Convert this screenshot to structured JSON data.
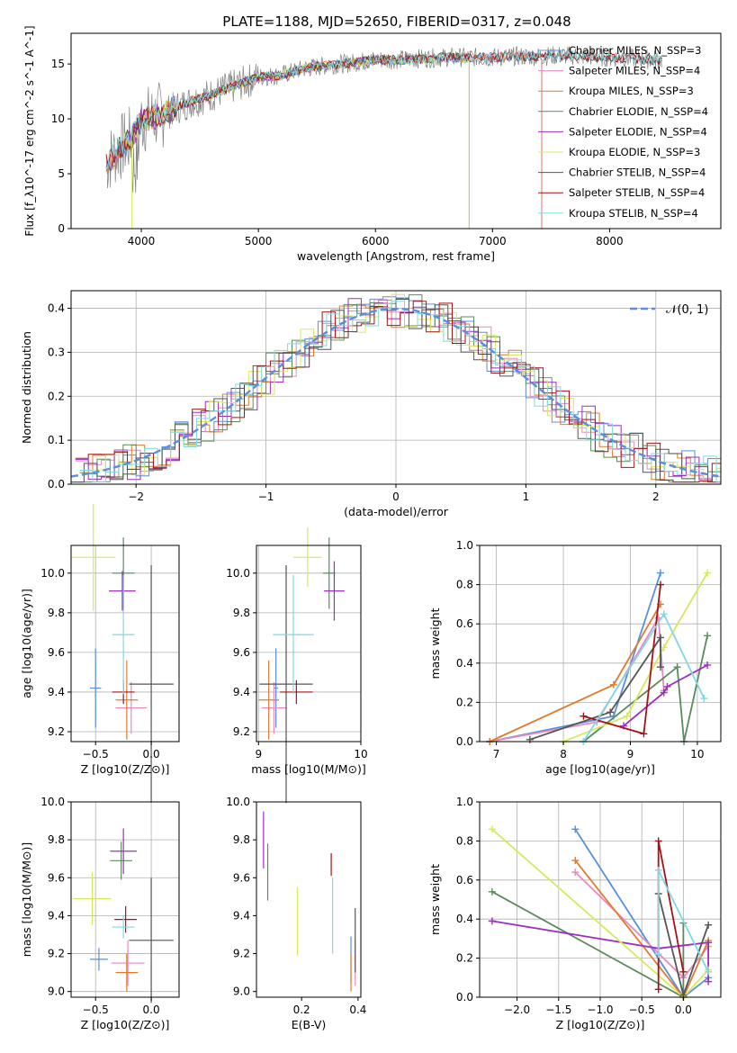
{
  "figure_title": "PLATE=1188, MJD=52650, FIBERID=0317, z=0.048",
  "colors": {
    "chabrier_miles": "#5a8fe0",
    "salpeter_miles": "#e88ac2",
    "kroupa_miles": "#e07b2e",
    "chabrier_elodie": "#5b8a5e",
    "salpeter_elodie": "#9b2fbf",
    "kroupa_elodie": "#d5ea5b",
    "chabrier_stelib": "#555555",
    "salpeter_stelib": "#a31515",
    "kroupa_stelib": "#7fd9e0",
    "data": "#808080",
    "normal": "#5a8fe0"
  },
  "chart_data": [
    {
      "id": "spectrum",
      "type": "line",
      "title": "PLATE=1188, MJD=52650, FIBERID=0317, z=0.048",
      "xlabel": "wavelength [Angstrom, rest frame]",
      "ylabel": "Flux [f_λ10^-17 erg cm^-2 s^-1 A^-1]",
      "xlim": [
        3400,
        8950
      ],
      "ylim": [
        0,
        17.8
      ],
      "xticks": [
        4000,
        5000,
        6000,
        7000,
        8000
      ],
      "yticks": [
        0,
        5,
        10,
        15
      ],
      "legend_position": "right",
      "legend": [
        "Chabrier MILES, N_SSP=3",
        "Salpeter MILES, N_SSP=4",
        "Kroupa MILES, N_SSP=3",
        "Chabrier ELODIE, N_SSP=4",
        "Salpeter ELODIE, N_SSP=4",
        "Kroupa ELODIE, N_SSP=3",
        "Chabrier STELIB, N_SSP=4",
        "Salpeter STELIB, N_SSP=4",
        "Kroupa STELIB, N_SSP=4"
      ],
      "data_trend": {
        "wavelength": [
          3700,
          3800,
          3900,
          4000,
          4200,
          4400,
          4600,
          4800,
          5000,
          5200,
          5400,
          5600,
          5800,
          6000,
          6200,
          6400,
          6600,
          6800,
          7000,
          7200,
          7400,
          7600,
          7800,
          8000,
          8200,
          8400
        ],
        "flux": [
          6.0,
          7.2,
          8.0,
          9.8,
          10.5,
          11.5,
          12.2,
          13.0,
          13.8,
          14.0,
          14.6,
          14.9,
          15.1,
          15.4,
          15.4,
          15.5,
          15.6,
          15.6,
          15.6,
          15.7,
          15.7,
          15.8,
          15.7,
          15.6,
          15.5,
          15.4
        ]
      }
    },
    {
      "id": "residuals",
      "type": "line",
      "xlabel": "(data-model)/error",
      "ylabel": "Normed distribution",
      "xlim": [
        -2.5,
        2.5
      ],
      "ylim": [
        0,
        0.44
      ],
      "xticks": [
        -2,
        -1,
        0,
        1,
        2
      ],
      "yticks": [
        0.0,
        0.1,
        0.2,
        0.3,
        0.4
      ],
      "legend_position": "top-right",
      "legend": [
        "𝒩(0, 1)"
      ],
      "grid": true
    },
    {
      "id": "age_vs_Z",
      "type": "scatter",
      "xlabel": "Z [log10(Z/Z⊙)]",
      "ylabel": "age [log10(age/yr)]",
      "xlim": [
        -0.72,
        0.25
      ],
      "ylim": [
        9.15,
        10.14
      ],
      "xticks": [
        -0.5,
        0.0
      ],
      "yticks": [
        9.2,
        9.4,
        9.6,
        9.8,
        10.0
      ],
      "grid": true,
      "points": [
        {
          "model": "chabrier_miles",
          "x": -0.5,
          "xerr": 0.05,
          "y": 9.42,
          "yerr": 0.2
        },
        {
          "model": "salpeter_miles",
          "x": -0.18,
          "xerr": 0.14,
          "y": 9.32,
          "yerr": 0.13
        },
        {
          "model": "kroupa_miles",
          "x": -0.22,
          "xerr": 0.1,
          "y": 9.36,
          "yerr": 0.2
        },
        {
          "model": "chabrier_elodie",
          "x": -0.25,
          "xerr": 0.1,
          "y": 10.0,
          "yerr": 0.18
        },
        {
          "model": "salpeter_elodie",
          "x": -0.26,
          "xerr": 0.12,
          "y": 9.91,
          "yerr": 0.1
        },
        {
          "model": "kroupa_elodie",
          "x": -0.52,
          "xerr": 0.2,
          "y": 10.08,
          "yerr": 0.27
        },
        {
          "model": "chabrier_stelib",
          "x": 0.0,
          "xerr": 0.2,
          "y": 9.44,
          "yerr": 0.6
        },
        {
          "model": "salpeter_stelib",
          "x": -0.25,
          "xerr": 0.1,
          "y": 9.4,
          "yerr": 0.06
        },
        {
          "model": "kroupa_stelib",
          "x": -0.25,
          "xerr": 0.1,
          "y": 9.69,
          "yerr": 0.3
        }
      ]
    },
    {
      "id": "age_vs_mass",
      "type": "scatter",
      "xlabel": "mass [log10(M/M⊙)]",
      "ylabel": "",
      "xlim": [
        8.98,
        10.0
      ],
      "ylim": [
        9.15,
        10.14
      ],
      "xticks": [
        9,
        10
      ],
      "yticks": [
        9.2,
        9.4,
        9.6,
        9.8,
        10.0
      ],
      "grid": true,
      "points": [
        {
          "model": "chabrier_miles",
          "x": 9.17,
          "xerr": 0.02,
          "y": 9.42,
          "yerr": 0.2
        },
        {
          "model": "salpeter_miles",
          "x": 9.15,
          "xerr": 0.12,
          "y": 9.32,
          "yerr": 0.13
        },
        {
          "model": "kroupa_miles",
          "x": 9.1,
          "xerr": 0.1,
          "y": 9.36,
          "yerr": 0.2
        },
        {
          "model": "chabrier_elodie",
          "x": 9.69,
          "xerr": 0.06,
          "y": 10.0,
          "yerr": 0.18
        },
        {
          "model": "salpeter_elodie",
          "x": 9.74,
          "xerr": 0.1,
          "y": 9.91,
          "yerr": 0.15
        },
        {
          "model": "kroupa_elodie",
          "x": 9.48,
          "xerr": 0.14,
          "y": 10.08,
          "yerr": 0.15
        },
        {
          "model": "chabrier_stelib",
          "x": 9.27,
          "xerr": 0.26,
          "y": 9.44,
          "yerr": 0.6
        },
        {
          "model": "salpeter_stelib",
          "x": 9.37,
          "xerr": 0.16,
          "y": 9.4,
          "yerr": 0.06
        },
        {
          "model": "kroupa_stelib",
          "x": 9.34,
          "xerr": 0.2,
          "y": 9.69,
          "yerr": 0.3
        }
      ]
    },
    {
      "id": "weight_vs_age",
      "type": "line",
      "xlabel": "age [log10(age/yr)]",
      "ylabel": "mass weight",
      "xlim": [
        6.75,
        10.35
      ],
      "ylim": [
        0,
        1.0
      ],
      "xticks": [
        7,
        8,
        9,
        10
      ],
      "yticks": [
        0.0,
        0.2,
        0.4,
        0.6,
        0.8,
        1.0
      ],
      "grid": true,
      "series": [
        {
          "model": "chabrier_miles",
          "x": [
            6.9,
            8.75,
            9.45
          ],
          "y": [
            0.0,
            0.13,
            0.86
          ]
        },
        {
          "model": "salpeter_miles",
          "x": [
            6.9,
            8.5,
            9.42,
            9.5
          ],
          "y": [
            0.0,
            0.1,
            0.63,
            0.26
          ]
        },
        {
          "model": "kroupa_miles",
          "x": [
            6.9,
            8.75,
            9.45
          ],
          "y": [
            0.0,
            0.29,
            0.7
          ]
        },
        {
          "model": "chabrier_elodie",
          "x": [
            8.3,
            9.7,
            9.8,
            10.15
          ],
          "y": [
            0.0,
            0.38,
            0.0,
            0.54
          ]
        },
        {
          "model": "salpeter_elodie",
          "x": [
            8.9,
            9.5,
            9.55,
            10.15
          ],
          "y": [
            0.08,
            0.25,
            0.28,
            0.39
          ]
        },
        {
          "model": "kroupa_elodie",
          "x": [
            8.0,
            8.95,
            9.5,
            10.15
          ],
          "y": [
            0.0,
            0.13,
            0.48,
            0.86
          ]
        },
        {
          "model": "chabrier_stelib",
          "x": [
            7.5,
            8.7,
            9.45,
            9.45
          ],
          "y": [
            0.01,
            0.15,
            0.53,
            0.38
          ]
        },
        {
          "model": "salpeter_stelib",
          "x": [
            8.3,
            9.2,
            9.45
          ],
          "y": [
            0.13,
            0.04,
            0.8
          ]
        },
        {
          "model": "kroupa_stelib",
          "x": [
            8.3,
            9.5,
            10.1
          ],
          "y": [
            0.0,
            0.65,
            0.22
          ]
        }
      ]
    },
    {
      "id": "mass_vs_Z",
      "type": "scatter",
      "xlabel": "Z [log10(Z/Z⊙)]",
      "ylabel": "mass [log10(M/M⊙)]",
      "xlim": [
        -0.72,
        0.25
      ],
      "ylim": [
        8.97,
        10.0
      ],
      "xticks": [
        -0.5,
        0.0
      ],
      "yticks": [
        9.0,
        9.2,
        9.4,
        9.6,
        9.8,
        10.0
      ],
      "grid": true,
      "points": [
        {
          "model": "chabrier_miles",
          "x": -0.47,
          "xerr": 0.08,
          "y": 9.17,
          "yerr": 0.06
        },
        {
          "model": "salpeter_miles",
          "x": -0.21,
          "xerr": 0.15,
          "y": 9.15,
          "yerr": 0.12
        },
        {
          "model": "kroupa_miles",
          "x": -0.22,
          "xerr": 0.1,
          "y": 9.1,
          "yerr": 0.1
        },
        {
          "model": "chabrier_elodie",
          "x": -0.27,
          "xerr": 0.1,
          "y": 9.69,
          "yerr": 0.1
        },
        {
          "model": "salpeter_elodie",
          "x": -0.25,
          "xerr": 0.12,
          "y": 9.74,
          "yerr": 0.12
        },
        {
          "model": "kroupa_elodie",
          "x": -0.53,
          "xerr": 0.17,
          "y": 9.49,
          "yerr": 0.14
        },
        {
          "model": "chabrier_stelib",
          "x": 0.0,
          "xerr": 0.2,
          "y": 9.27,
          "yerr": 0.33
        },
        {
          "model": "salpeter_stelib",
          "x": -0.23,
          "xerr": 0.1,
          "y": 9.38,
          "yerr": 0.07
        },
        {
          "model": "kroupa_stelib",
          "x": -0.25,
          "xerr": 0.1,
          "y": 9.34,
          "yerr": 0.06
        }
      ]
    },
    {
      "id": "mass_vs_ebv",
      "type": "scatter",
      "xlabel": "E(B-V)",
      "ylabel": "",
      "xlim": [
        0.04,
        0.41
      ],
      "ylim": [
        8.97,
        10.0
      ],
      "xticks": [
        0.2,
        0.4
      ],
      "yticks": [
        9.0,
        9.2,
        9.4,
        9.6,
        9.8,
        10.0
      ],
      "grid": false,
      "points": [
        {
          "model": "chabrier_miles",
          "x": 0.375,
          "xerr": 0.0,
          "y": 9.17,
          "yerr": 0.12
        },
        {
          "model": "salpeter_miles",
          "x": 0.39,
          "xerr": 0.0,
          "y": 9.15,
          "yerr": 0.12
        },
        {
          "model": "kroupa_miles",
          "x": 0.375,
          "xerr": 0.0,
          "y": 9.1,
          "yerr": 0.1
        },
        {
          "model": "chabrier_elodie",
          "x": 0.08,
          "xerr": 0.0,
          "y": 9.63,
          "yerr": 0.15
        },
        {
          "model": "salpeter_elodie",
          "x": 0.065,
          "xerr": 0.0,
          "y": 9.8,
          "yerr": 0.15
        },
        {
          "model": "kroupa_elodie",
          "x": 0.185,
          "xerr": 0.0,
          "y": 9.37,
          "yerr": 0.18
        },
        {
          "model": "chabrier_stelib",
          "x": 0.39,
          "xerr": 0.0,
          "y": 9.27,
          "yerr": 0.17
        },
        {
          "model": "salpeter_stelib",
          "x": 0.305,
          "xerr": 0.0,
          "y": 9.67,
          "yerr": 0.06
        },
        {
          "model": "kroupa_stelib",
          "x": 0.31,
          "xerr": 0.0,
          "y": 9.4,
          "yerr": 0.2
        }
      ]
    },
    {
      "id": "weight_vs_Z",
      "type": "line",
      "xlabel": "Z [log10(Z/Z⊙)]",
      "ylabel": "mass weight",
      "xlim": [
        -2.45,
        0.45
      ],
      "ylim": [
        0,
        1.0
      ],
      "xticks": [
        -2.0,
        -1.5,
        -1.0,
        -0.5,
        0.0
      ],
      "yticks": [
        0.0,
        0.2,
        0.4,
        0.6,
        0.8,
        1.0
      ],
      "grid": true,
      "series": [
        {
          "model": "chabrier_miles",
          "x": [
            -1.3,
            0.0,
            0.3
          ],
          "y": [
            0.86,
            0.0,
            0.1
          ]
        },
        {
          "model": "salpeter_miles",
          "x": [
            -1.3,
            0.0,
            0.3
          ],
          "y": [
            0.64,
            0.1,
            0.26
          ]
        },
        {
          "model": "kroupa_miles",
          "x": [
            -1.3,
            0.0,
            0.3
          ],
          "y": [
            0.7,
            0.0,
            0.29
          ]
        },
        {
          "model": "chabrier_elodie",
          "x": [
            -2.3,
            0.0,
            0.0
          ],
          "y": [
            0.54,
            0.0,
            0.38
          ]
        },
        {
          "model": "salpeter_elodie",
          "x": [
            -2.3,
            -0.3,
            0.3,
            0.3
          ],
          "y": [
            0.39,
            0.25,
            0.28,
            0.08
          ]
        },
        {
          "model": "kroupa_elodie",
          "x": [
            -2.3,
            0.0,
            0.3
          ],
          "y": [
            0.86,
            0.0,
            0.14
          ]
        },
        {
          "model": "chabrier_stelib",
          "x": [
            -0.3,
            0.0,
            0.3
          ],
          "y": [
            0.53,
            0.01,
            0.37
          ]
        },
        {
          "model": "salpeter_stelib",
          "x": [
            -0.3,
            -0.3,
            0.0
          ],
          "y": [
            0.04,
            0.8,
            0.13
          ]
        },
        {
          "model": "kroupa_stelib",
          "x": [
            -0.3,
            -0.3,
            0.3
          ],
          "y": [
            0.22,
            0.65,
            0.13
          ]
        }
      ]
    }
  ]
}
